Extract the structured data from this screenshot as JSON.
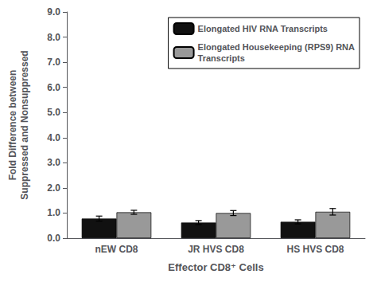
{
  "chart_data": {
    "type": "bar",
    "categories": [
      "nEW CD8",
      "JR HVS CD8",
      "HS HVS CD8"
    ],
    "series": [
      {
        "name": "Elongated HIV RNA Transcripts",
        "color": "#111111",
        "values": [
          0.78,
          0.62,
          0.65
        ],
        "errors": [
          0.1,
          0.08,
          0.08
        ]
      },
      {
        "name": "Elongated Housekeeping (RPS9) RNA\nTranscripts",
        "color": "#999999",
        "values": [
          1.03,
          1.0,
          1.05
        ],
        "errors": [
          0.08,
          0.1,
          0.13
        ]
      }
    ],
    "xlabel": "Effector CD8⁺ Cells",
    "ylabel": "Fold Difference between\nSuppressed and Nonsuppressed",
    "ylim": [
      0.0,
      9.0
    ],
    "yticks": [
      {
        "value": 0.0,
        "label": "0.0"
      },
      {
        "value": 1.0,
        "label": "1.0"
      },
      {
        "value": 2.0,
        "label": "2.0"
      },
      {
        "value": 3.0,
        "label": "3.0"
      },
      {
        "value": 4.0,
        "label": "4.0"
      },
      {
        "value": 5.0,
        "label": "5.0"
      },
      {
        "value": 6.0,
        "label": "6.0"
      },
      {
        "value": 7.0,
        "label": "7.0"
      },
      {
        "value": 8.0,
        "label": "8.0"
      },
      {
        "value": 9.0,
        "label": "9.0"
      }
    ],
    "grid": false,
    "legend": "upper right"
  }
}
